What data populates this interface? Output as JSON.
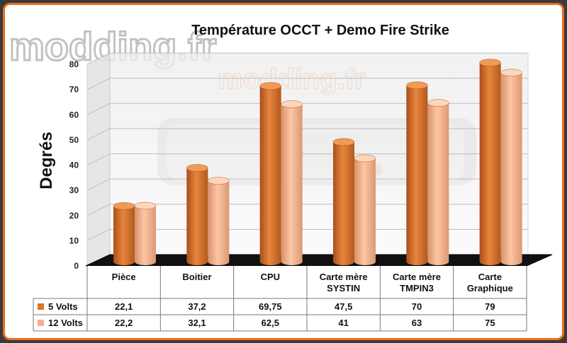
{
  "watermark": {
    "brand": "modding.fr",
    "brand_small": "modding.fr",
    "accent_color": "#e8701a"
  },
  "chart_data": {
    "type": "bar",
    "title": "Température OCCT + Demo Fire Strike",
    "xlabel": "",
    "ylabel": "Degrés",
    "ylim": [
      0,
      80
    ],
    "yticks": [
      0,
      10,
      20,
      30,
      40,
      50,
      60,
      70,
      80
    ],
    "grid": true,
    "legend": "table-below",
    "categories": [
      [
        "Pièce"
      ],
      [
        "Boitier"
      ],
      [
        "CPU"
      ],
      [
        "Carte mère",
        "SYSTIN"
      ],
      [
        "Carte mère",
        "TMPIN3"
      ],
      [
        "Carte",
        "Graphique"
      ]
    ],
    "series": [
      {
        "name": "5 Volts",
        "color": "#d9762a",
        "values": [
          22.1,
          37.2,
          69.75,
          47.5,
          70,
          79
        ],
        "labels": [
          "22,1",
          "37,2",
          "69,75",
          "47,5",
          "70",
          "79"
        ]
      },
      {
        "name": "12 Volts",
        "color": "#f4b08c",
        "values": [
          22.2,
          32.1,
          62.5,
          41,
          63,
          75
        ],
        "labels": [
          "22,2",
          "32,1",
          "62,5",
          "41",
          "63",
          "75"
        ]
      }
    ]
  }
}
